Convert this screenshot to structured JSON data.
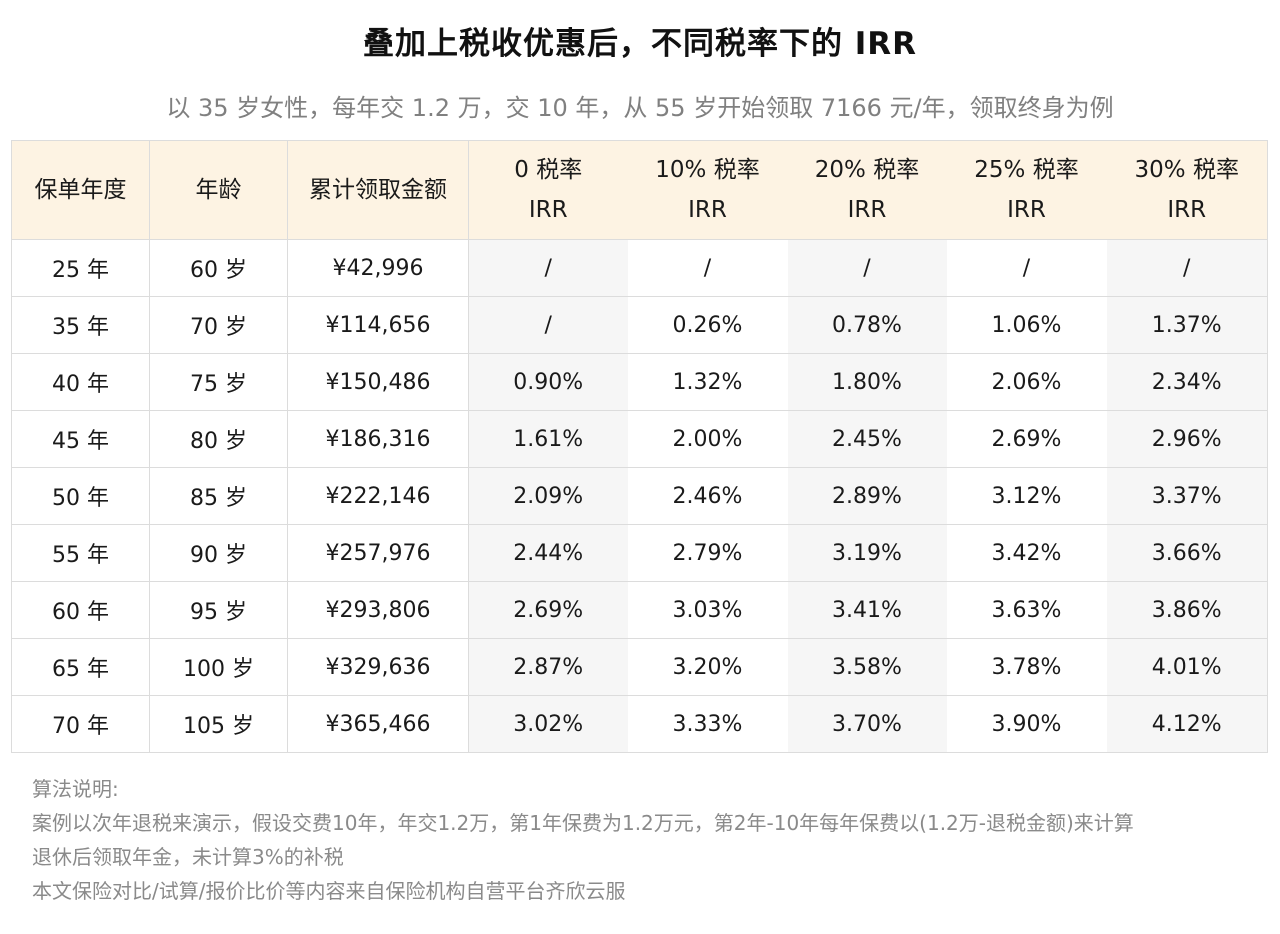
{
  "title": "叠加上税收优惠后，不同税率下的 IRR",
  "subtitle": "以 35 岁女性，每年交 1.2 万，交 10 年，从 55 岁开始领取 7166 元/年，领取终身为例",
  "table": {
    "headers": {
      "year": "保单年度",
      "age": "年龄",
      "amount": "累计领取金额",
      "rates": [
        {
          "line1": "0 税率",
          "line2": "IRR"
        },
        {
          "line1": "10% 税率",
          "line2": "IRR"
        },
        {
          "line1": "20% 税率",
          "line2": "IRR"
        },
        {
          "line1": "25% 税率",
          "line2": "IRR"
        },
        {
          "line1": "30% 税率",
          "line2": "IRR"
        }
      ]
    },
    "rows": [
      {
        "year": "25 年",
        "age": "60 岁",
        "amount": "¥42,996",
        "irr": [
          "/",
          "/",
          "/",
          "/",
          "/"
        ]
      },
      {
        "year": "35 年",
        "age": "70 岁",
        "amount": "¥114,656",
        "irr": [
          "/",
          "0.26%",
          "0.78%",
          "1.06%",
          "1.37%"
        ]
      },
      {
        "year": "40 年",
        "age": "75 岁",
        "amount": "¥150,486",
        "irr": [
          "0.90%",
          "1.32%",
          "1.80%",
          "2.06%",
          "2.34%"
        ]
      },
      {
        "year": "45 年",
        "age": "80 岁",
        "amount": "¥186,316",
        "irr": [
          "1.61%",
          "2.00%",
          "2.45%",
          "2.69%",
          "2.96%"
        ]
      },
      {
        "year": "50 年",
        "age": "85 岁",
        "amount": "¥222,146",
        "irr": [
          "2.09%",
          "2.46%",
          "2.89%",
          "3.12%",
          "3.37%"
        ]
      },
      {
        "year": "55 年",
        "age": "90 岁",
        "amount": "¥257,976",
        "irr": [
          "2.44%",
          "2.79%",
          "3.19%",
          "3.42%",
          "3.66%"
        ]
      },
      {
        "year": "60 年",
        "age": "95 岁",
        "amount": "¥293,806",
        "irr": [
          "2.69%",
          "3.03%",
          "3.41%",
          "3.63%",
          "3.86%"
        ]
      },
      {
        "year": "65 年",
        "age": "100 岁",
        "amount": "¥329,636",
        "irr": [
          "2.87%",
          "3.20%",
          "3.58%",
          "3.78%",
          "4.01%"
        ]
      },
      {
        "year": "70 年",
        "age": "105 岁",
        "amount": "¥365,466",
        "irr": [
          "3.02%",
          "3.33%",
          "3.70%",
          "3.90%",
          "4.12%"
        ]
      }
    ]
  },
  "notes": {
    "heading": "算法说明:",
    "lines": [
      "案例以次年退税来演示，假设交费10年，年交1.2万，第1年保费为1.2万元，第2年-10年每年保费以(1.2万-退税金额)来计算",
      "退休后领取年金，未计算3%的补税",
      "本文保险对比/试算/报价比价等内容来自保险机构自营平台齐欣云服"
    ]
  },
  "colors": {
    "header_bg": "#fdf3e3",
    "shade_bg": "#f6f6f6",
    "border": "#dcdcdc",
    "subtitle_text": "#808080",
    "notes_text": "#8a8a8a"
  }
}
